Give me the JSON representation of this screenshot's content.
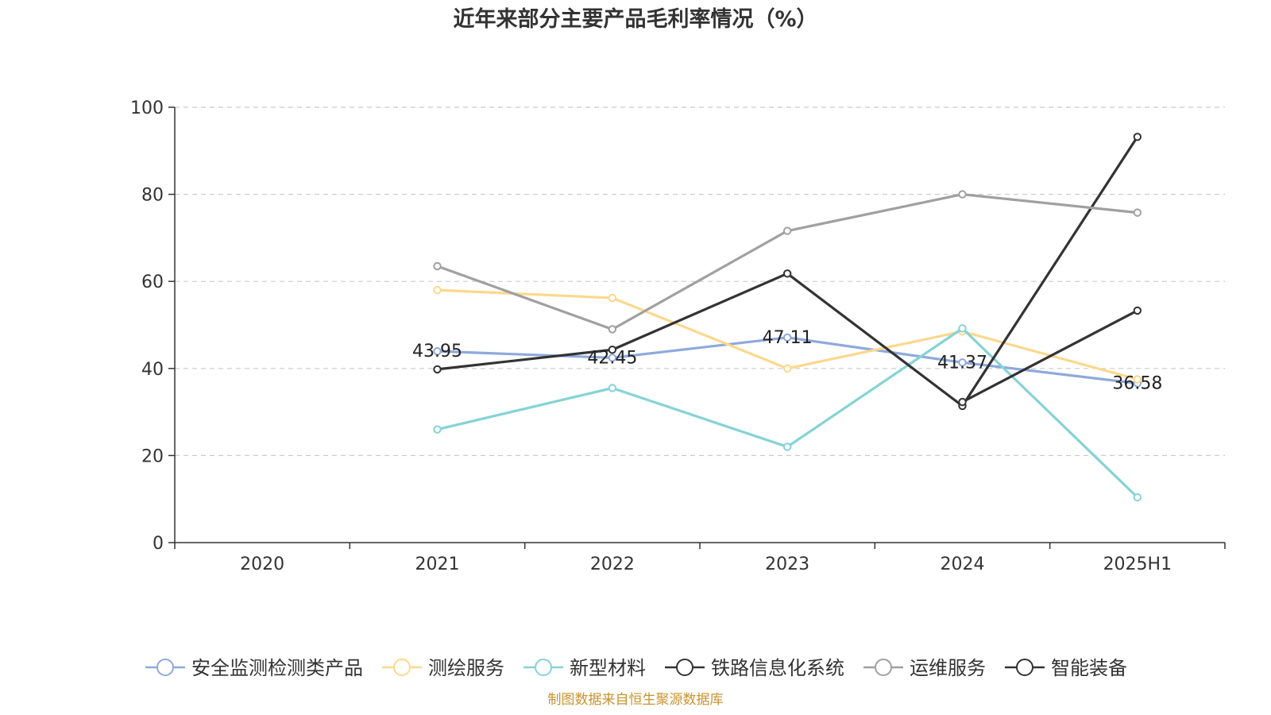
{
  "chart_data": {
    "type": "line",
    "title": "近年来部分主要产品毛利率情况（%）",
    "source": "制图数据来自恒生聚源数据库",
    "categories": [
      "2020",
      "2021",
      "2022",
      "2023",
      "2024",
      "2025H1"
    ],
    "ylim": [
      0,
      100
    ],
    "yticks": [
      "0",
      "20",
      "40",
      "60",
      "80",
      "100"
    ],
    "grid": true,
    "legend_position": "bottom",
    "series": [
      {
        "name": "安全监测检测类产品",
        "color": "#8ea9db",
        "values": [
          null,
          43.95,
          42.45,
          47.11,
          41.37,
          36.58
        ],
        "labels": [
          "",
          "43.95",
          "42.45",
          "47.11",
          "41.37",
          "36.58"
        ]
      },
      {
        "name": "测绘服务",
        "color": "#fcd88c",
        "values": [
          null,
          58.0,
          56.2,
          40.0,
          48.5,
          37.5
        ],
        "labels": []
      },
      {
        "name": "新型材料",
        "color": "#85d3d6",
        "values": [
          null,
          26.0,
          35.5,
          22.0,
          49.2,
          10.4
        ],
        "labels": []
      },
      {
        "name": "铁路信息化系统",
        "color": "#333333",
        "values": [
          null,
          39.8,
          44.3,
          61.8,
          31.4,
          93.2
        ],
        "labels": []
      },
      {
        "name": "运维服务",
        "color": "#a0a0a0",
        "values": [
          null,
          63.5,
          49.0,
          71.6,
          80.0,
          75.8
        ],
        "labels": []
      },
      {
        "name": "智能装备",
        "color": "#333333",
        "values": [
          null,
          null,
          null,
          null,
          32.3,
          53.3
        ],
        "labels": []
      }
    ]
  }
}
